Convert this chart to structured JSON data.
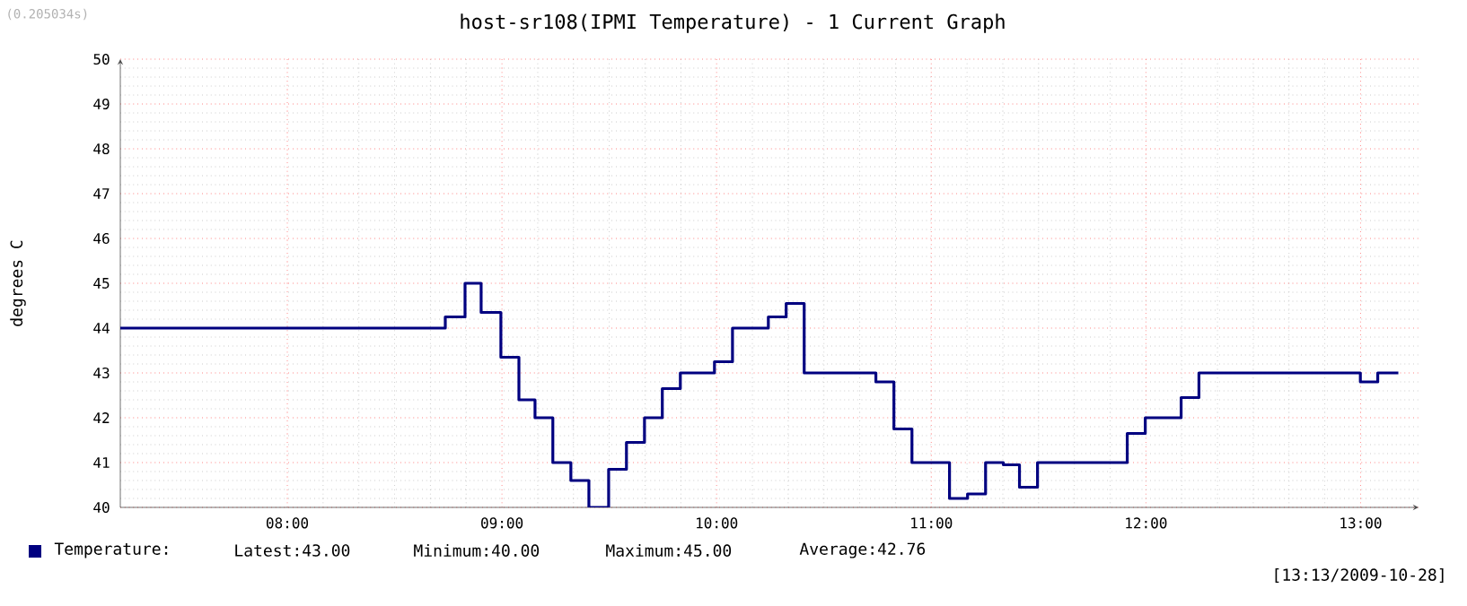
{
  "chart_data": {
    "type": "step",
    "title": "host-sr108(IPMI Temperature) - 1 Current Graph",
    "ylabel": "degrees C",
    "x": [
      7.222,
      8.736,
      8.828,
      8.903,
      8.995,
      9.079,
      9.154,
      9.237,
      9.321,
      9.405,
      9.497,
      9.58,
      9.664,
      9.747,
      9.831,
      9.99,
      10.074,
      10.241,
      10.324,
      10.408,
      10.742,
      10.826,
      10.91,
      11.085,
      11.169,
      11.253,
      11.336,
      11.411,
      11.495,
      11.913,
      11.997,
      12.164,
      12.247,
      12.999,
      13.08,
      13.176
    ],
    "series": [
      {
        "name": "Temperature:",
        "color": "#000080",
        "values": [
          44.0,
          44.25,
          45.0,
          44.35,
          43.35,
          42.4,
          42.0,
          41.0,
          40.6,
          40.0,
          40.85,
          41.45,
          42.0,
          42.65,
          43.0,
          43.25,
          44.0,
          44.25,
          44.55,
          43.0,
          42.8,
          41.75,
          41.0,
          40.2,
          40.3,
          41.0,
          40.95,
          40.45,
          41.0,
          41.65,
          42.0,
          42.45,
          43.0,
          42.8,
          43.0,
          43.0
        ]
      }
    ],
    "xlim": [
      7.222,
      13.27
    ],
    "ylim": [
      40,
      50
    ],
    "xticks": [
      {
        "value": 8,
        "label": "08:00"
      },
      {
        "value": 9,
        "label": "09:00"
      },
      {
        "value": 10,
        "label": "10:00"
      },
      {
        "value": 11,
        "label": "11:00"
      },
      {
        "value": 12,
        "label": "12:00"
      },
      {
        "value": 13,
        "label": "13:00"
      }
    ],
    "yticks": [
      40,
      41,
      42,
      43,
      44,
      45,
      46,
      47,
      48,
      49,
      50
    ],
    "grid": true,
    "legend": "bottom",
    "annotations": [
      "Latest:43.00",
      "Minimum:40.00",
      "Maximum:45.00",
      "Average:42.76",
      "[13:13/2009-10-28]",
      "(0.205034s)"
    ]
  }
}
